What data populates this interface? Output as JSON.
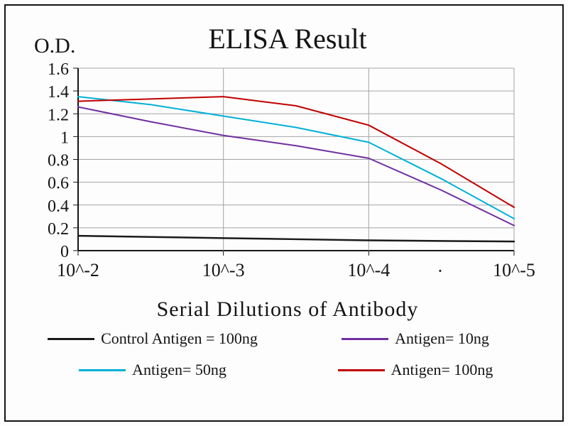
{
  "chart_data": {
    "type": "line",
    "title": "ELISA Result",
    "ylabel": "O.D.",
    "xlabel": "Serial Dilutions  of Antibody",
    "x_axis_scale": "serial dilution (log10)",
    "x_range": [
      -2,
      -5
    ],
    "y_range": [
      0,
      1.6
    ],
    "grid": true,
    "legend_position": "bottom",
    "y_ticks": [
      {
        "value": 0,
        "label": "0"
      },
      {
        "value": 0.2,
        "label": "0.2"
      },
      {
        "value": 0.4,
        "label": "0.4"
      },
      {
        "value": 0.6,
        "label": "0.6"
      },
      {
        "value": 0.8,
        "label": "0.8"
      },
      {
        "value": 1,
        "label": "1"
      },
      {
        "value": 1.2,
        "label": "1.2"
      },
      {
        "value": 1.4,
        "label": "1.4"
      },
      {
        "value": 1.6,
        "label": "1.6"
      }
    ],
    "x_ticks": [
      {
        "log": -2,
        "label": "10^-2"
      },
      {
        "log": -3,
        "label": "10^-3"
      },
      {
        "log": -4,
        "label": "10^-4"
      },
      {
        "log": -5,
        "label": "10^-5"
      }
    ],
    "x_log": [
      -2,
      -2.5,
      -3,
      -3.5,
      -4,
      -4.5,
      -5
    ],
    "series": [
      {
        "name": "Control Antigen = 100ng",
        "color": "#1a1a1a",
        "values": [
          0.13,
          0.12,
          0.11,
          0.1,
          0.09,
          0.085,
          0.08
        ]
      },
      {
        "name": "Antigen= 10ng",
        "color": "#7030a0",
        "values": [
          1.26,
          1.13,
          1.01,
          0.92,
          0.81,
          0.53,
          0.22
        ]
      },
      {
        "name": "Antigen= 50ng",
        "color": "#00b0d8",
        "values": [
          1.35,
          1.28,
          1.18,
          1.08,
          0.95,
          0.63,
          0.28
        ]
      },
      {
        "name": "Antigen= 100ng",
        "color": "#c00000",
        "values": [
          1.31,
          1.33,
          1.35,
          1.27,
          1.1,
          0.76,
          0.38
        ]
      }
    ],
    "annotations": [
      {
        "text": "·"
      }
    ]
  }
}
